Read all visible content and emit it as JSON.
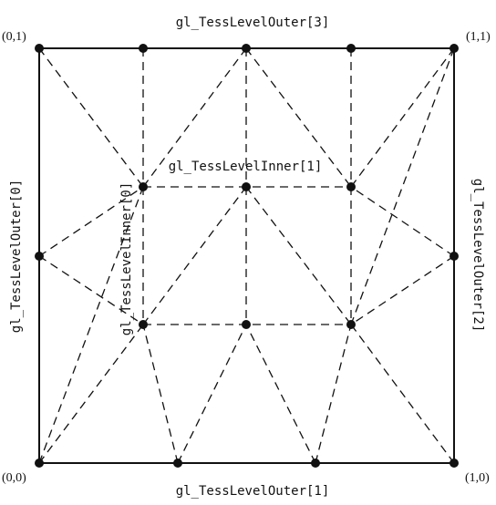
{
  "labels": {
    "outer0": "gl_TessLevelOuter[0]",
    "outer1": "gl_TessLevelOuter[1]",
    "outer2": "gl_TessLevelOuter[2]",
    "outer3": "gl_TessLevelOuter[3]",
    "inner0": "gl_TessLevelInner[0]",
    "inner1": "gl_TessLevelInner[1]"
  },
  "corners": {
    "bottom_left": "(0,0)",
    "bottom_right": "(1,0)",
    "top_left": "(0,1)",
    "top_right": "(1,1)"
  }
}
